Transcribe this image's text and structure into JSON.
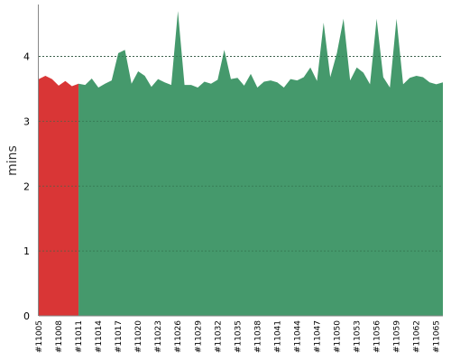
{
  "chart_data": {
    "type": "area",
    "ylabel": "mins",
    "ylim": [
      0,
      4.8
    ],
    "y_ticks": [
      "0",
      "1",
      "2",
      "3",
      "4"
    ],
    "grid": "horizontal dashed",
    "colors": {
      "failed": "#d93636",
      "success": "#45996c"
    },
    "x_tick_labels": [
      "#11005",
      "#11008",
      "#11011",
      "#11014",
      "#11017",
      "#11020",
      "#11023",
      "#11026",
      "#11029",
      "#11032",
      "#11035",
      "#11038",
      "#11041",
      "#11044",
      "#11047",
      "#11050",
      "#11053",
      "#11056",
      "#11059",
      "#11062",
      "#11065"
    ],
    "series": [
      {
        "status": "failed",
        "x": [
          11005,
          11006,
          11007,
          11008,
          11009,
          11010,
          11011
        ],
        "values": [
          3.65,
          3.7,
          3.65,
          3.55,
          3.62,
          3.54,
          3.58
        ]
      },
      {
        "status": "success",
        "x": [
          11011,
          11012,
          11013,
          11014,
          11015,
          11016,
          11017,
          11018,
          11019,
          11020,
          11021,
          11022,
          11023,
          11024,
          11025,
          11026,
          11027,
          11028,
          11029,
          11030,
          11031,
          11032,
          11033,
          11034,
          11035,
          11036,
          11037,
          11038,
          11039,
          11040,
          11041,
          11042,
          11043,
          11044,
          11045,
          11046,
          11047,
          11048,
          11049,
          11050,
          11051,
          11052,
          11053,
          11054,
          11055,
          11056,
          11057,
          11058,
          11059,
          11060,
          11061,
          11062,
          11063,
          11064,
          11065,
          11066
        ],
        "values": [
          3.58,
          3.56,
          3.66,
          3.52,
          3.58,
          3.63,
          4.05,
          4.1,
          3.58,
          3.77,
          3.7,
          3.53,
          3.65,
          3.6,
          3.56,
          4.7,
          3.56,
          3.56,
          3.52,
          3.61,
          3.58,
          3.64,
          4.1,
          3.65,
          3.67,
          3.55,
          3.73,
          3.52,
          3.61,
          3.63,
          3.6,
          3.52,
          3.65,
          3.63,
          3.68,
          3.83,
          3.62,
          4.52,
          3.68,
          4.05,
          4.58,
          3.63,
          3.83,
          3.75,
          3.57,
          4.58,
          3.68,
          3.52,
          4.58,
          3.57,
          3.67,
          3.7,
          3.68,
          3.6,
          3.57,
          3.6
        ]
      }
    ]
  }
}
